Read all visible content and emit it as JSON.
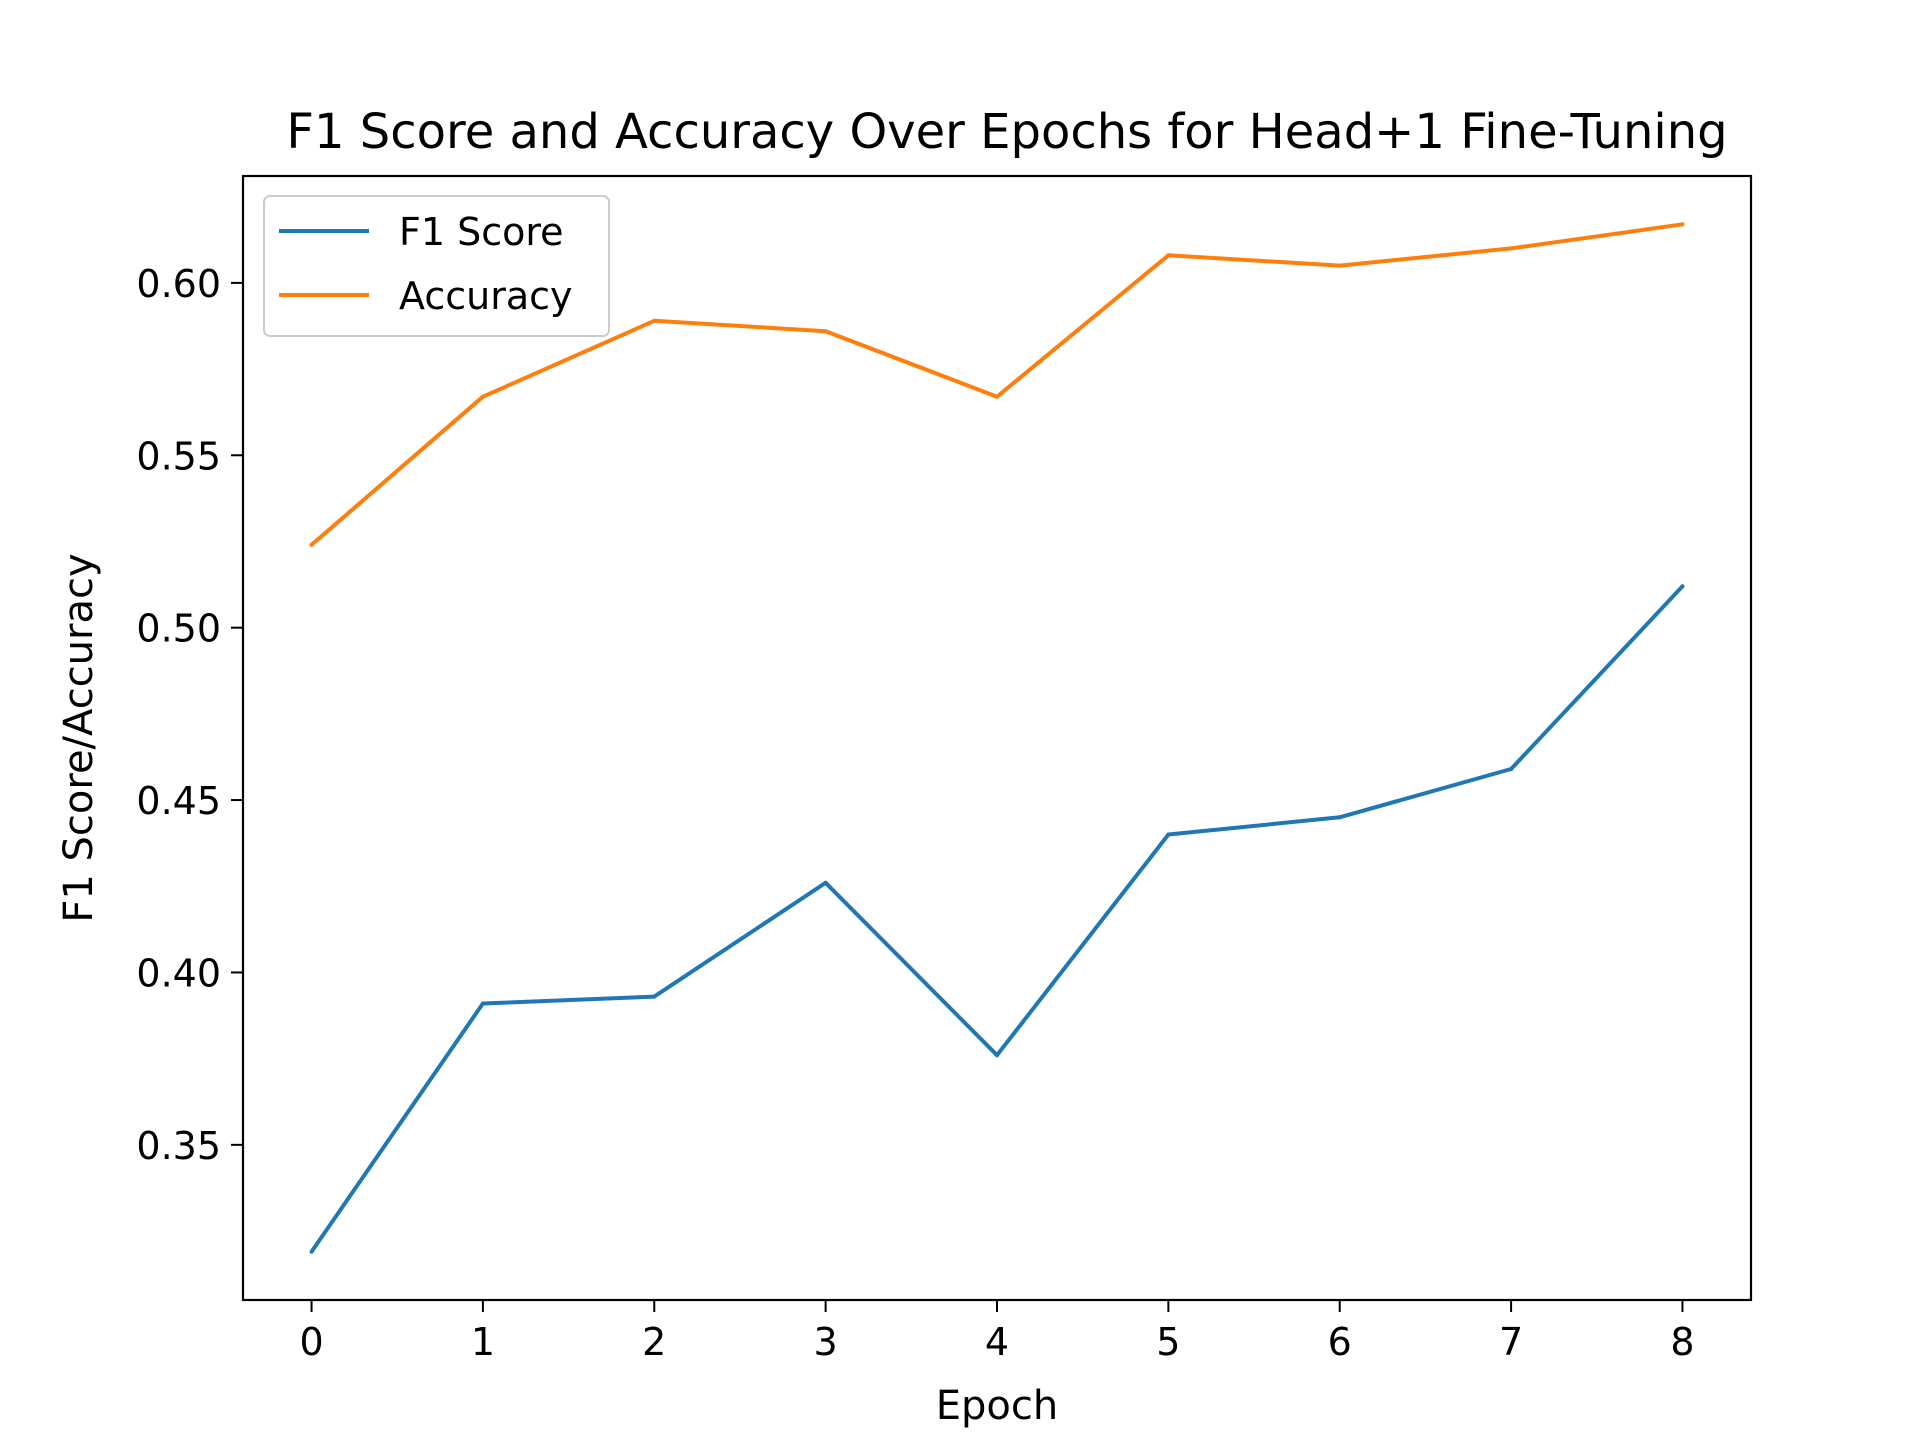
{
  "chart_data": {
    "type": "line",
    "title": "F1 Score and Accuracy Over Epochs for Head+1 Fine-Tuning",
    "xlabel": "Epoch",
    "ylabel": "F1 Score/Accuracy",
    "x": [
      0,
      1,
      2,
      3,
      4,
      5,
      6,
      7,
      8
    ],
    "xticks": [
      "0",
      "1",
      "2",
      "3",
      "4",
      "5",
      "6",
      "7",
      "8"
    ],
    "yticks": [
      0.35,
      0.4,
      0.45,
      0.5,
      0.55,
      0.6
    ],
    "ytick_labels": [
      "0.35",
      "0.40",
      "0.45",
      "0.50",
      "0.55",
      "0.60"
    ],
    "xlim": [
      -0.4,
      8.4
    ],
    "ylim": [
      0.305,
      0.631
    ],
    "grid": false,
    "legend_position": "upper-left",
    "series": [
      {
        "name": "F1 Score",
        "color": "#1f77b4",
        "values": [
          0.319,
          0.391,
          0.393,
          0.426,
          0.376,
          0.44,
          0.445,
          0.459,
          0.512
        ]
      },
      {
        "name": "Accuracy",
        "color": "#ff7f0e",
        "values": [
          0.524,
          0.567,
          0.589,
          0.586,
          0.567,
          0.608,
          0.605,
          0.61,
          0.617
        ]
      }
    ]
  }
}
